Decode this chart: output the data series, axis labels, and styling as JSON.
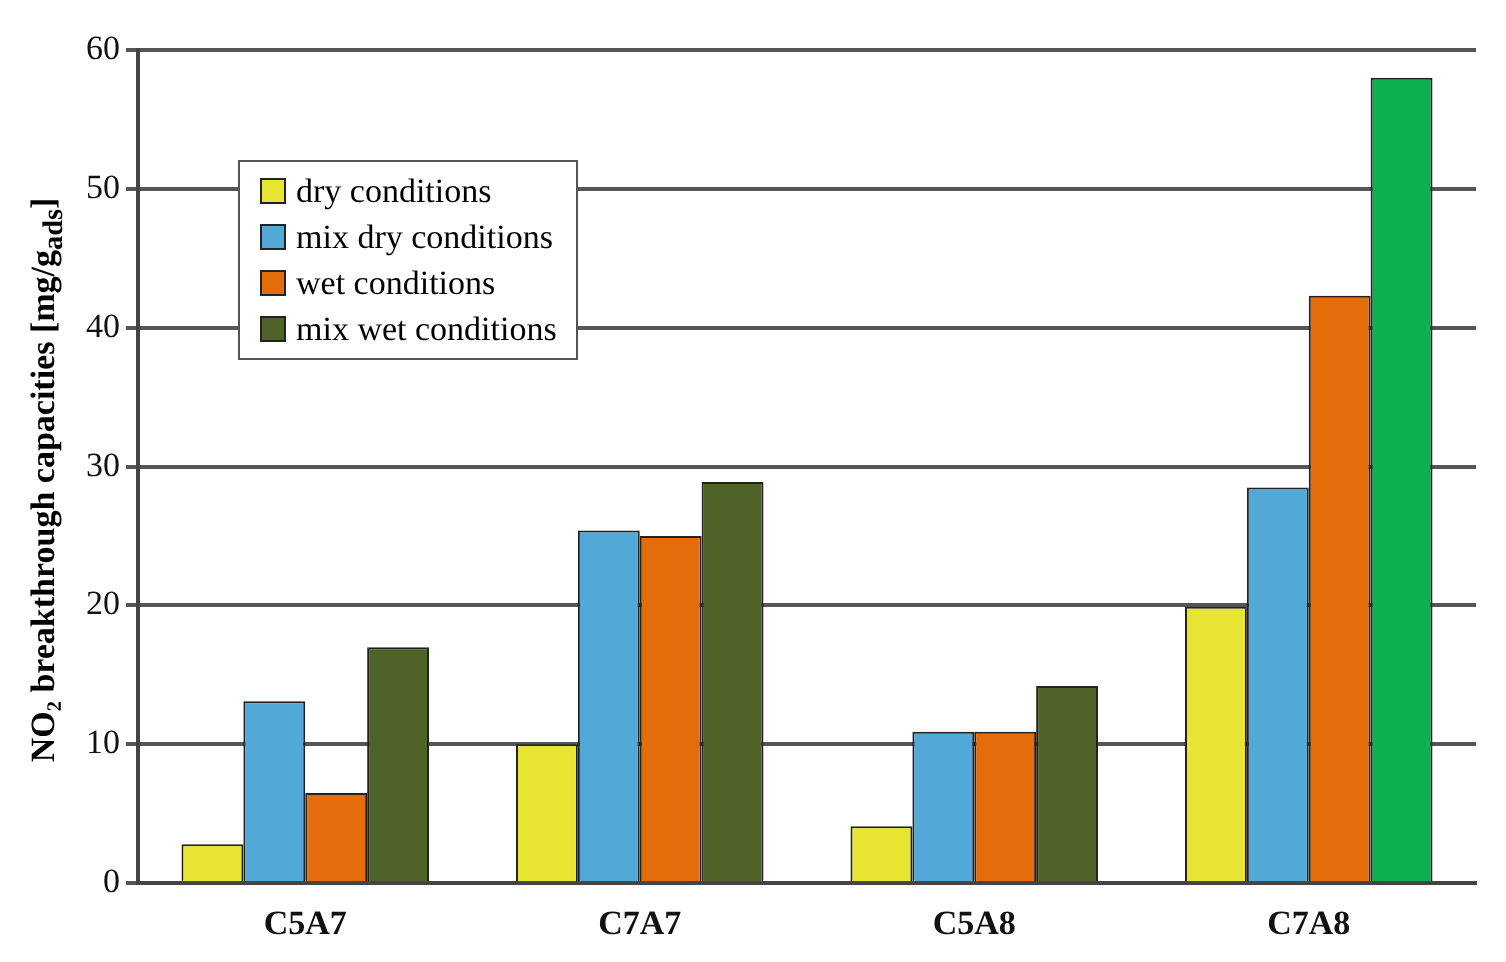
{
  "chart_data": {
    "type": "bar",
    "ylabel": "NO₂ breakthrough capacities [mg/g$_{ads}$]",
    "categories": [
      "C5A7",
      "C7A7",
      "C5A8",
      "C7A8"
    ],
    "series": [
      {
        "name": "dry conditions",
        "color": "#e8e432",
        "values": [
          2.8,
          10.0,
          4.1,
          19.9
        ]
      },
      {
        "name": "mix dry conditions",
        "color": "#52a8d6",
        "values": [
          13.1,
          25.4,
          10.9,
          28.5
        ]
      },
      {
        "name": "wet conditions",
        "color": "#e46c0a",
        "values": [
          6.5,
          25.0,
          10.9,
          42.3
        ]
      },
      {
        "name": "mix wet conditions",
        "color": "#4f6228",
        "colors": [
          "#4f6228",
          "#4f6228",
          "#4f6228",
          "#0bb04f"
        ],
        "values": [
          17.0,
          28.9,
          14.2,
          58.0
        ]
      }
    ],
    "ylim": [
      0,
      60
    ],
    "yticks": [
      0,
      10,
      20,
      30,
      40,
      50,
      60
    ],
    "grid": "y",
    "legend": "top left"
  }
}
